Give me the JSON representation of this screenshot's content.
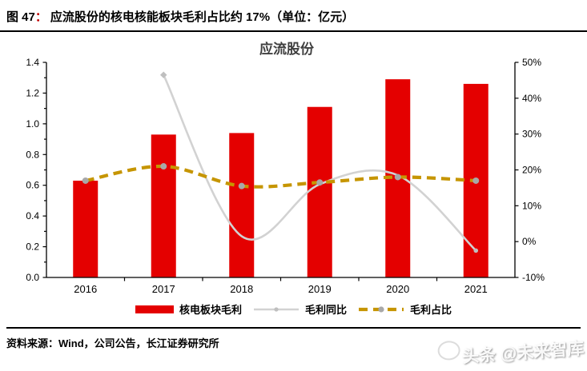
{
  "header": {
    "figure_label": "图 47",
    "colon": "：",
    "title": "应流股份的核电核能板块毛利占比约 17%（单位：亿元）"
  },
  "chart_data": {
    "type": "bar",
    "title": "应流股份",
    "categories": [
      "2016",
      "2017",
      "2018",
      "2019",
      "2020",
      "2021"
    ],
    "left_axis": {
      "min": 0,
      "max": 1.4,
      "ticks": [
        "1.4",
        "1.2",
        "1.0",
        "0.8",
        "0.6",
        "0.4",
        "0.2",
        "0.0"
      ]
    },
    "right_axis": {
      "min": -10,
      "max": 50,
      "ticks": [
        "50%",
        "40%",
        "30%",
        "20%",
        "10%",
        "0%",
        "-10%"
      ]
    },
    "series": [
      {
        "name": "核电板块毛利",
        "type": "bar",
        "axis": "left",
        "color": "#e40000",
        "values": [
          0.63,
          0.93,
          0.94,
          1.11,
          1.29,
          1.26
        ]
      },
      {
        "name": "毛利同比",
        "type": "line",
        "axis": "right",
        "color": "#d2d2d2",
        "marker_color": "#bfbfbf",
        "values": [
          null,
          46.5,
          1.5,
          16,
          18.5,
          -2.5
        ]
      },
      {
        "name": "毛利占比",
        "type": "dashed-line",
        "axis": "right",
        "color": "#c69500",
        "marker_color": "#a8a8a8",
        "values": [
          17,
          21,
          15.5,
          16.5,
          18,
          17
        ]
      }
    ],
    "legend_position": "bottom",
    "grid": "off"
  },
  "source": {
    "label": "资料来源：Wind，公司公告，长江证券研究所"
  },
  "watermark": {
    "text": "头条 @未来智库"
  }
}
